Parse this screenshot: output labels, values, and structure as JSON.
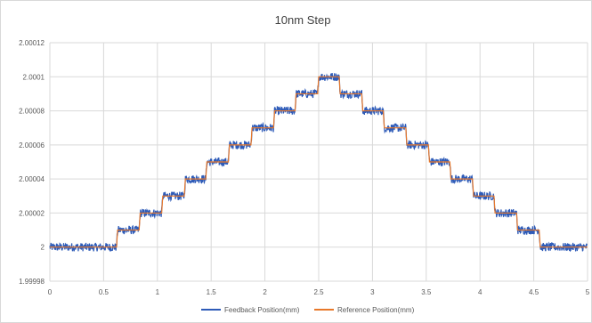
{
  "chart_data": {
    "type": "line",
    "title": "10nm Step",
    "xlabel": "",
    "ylabel": "",
    "xlim": [
      0,
      5
    ],
    "ylim": [
      1.99998,
      2.00012
    ],
    "x_ticks": [
      "0",
      "0.5",
      "1",
      "1.5",
      "2",
      "2.5",
      "3",
      "3.5",
      "4",
      "4.5",
      "5"
    ],
    "y_ticks": [
      "1.99998",
      "2",
      "2.00002",
      "2.00004",
      "2.00006",
      "2.00008",
      "2.0001",
      "2.00012"
    ],
    "grid": true,
    "legend_position": "bottom",
    "series": [
      {
        "name": "Feedback Position(mm)",
        "color": "#2e5bb8",
        "noise_amplitude": 2.5e-06,
        "x": [
          0,
          0.62,
          0.63,
          0.83,
          0.84,
          1.04,
          1.05,
          1.25,
          1.26,
          1.45,
          1.46,
          1.66,
          1.67,
          1.87,
          1.88,
          2.08,
          2.09,
          2.28,
          2.29,
          2.49,
          2.5,
          2.69,
          2.7,
          2.9,
          2.91,
          3.1,
          3.11,
          3.31,
          3.32,
          3.52,
          3.53,
          3.72,
          3.73,
          3.93,
          3.94,
          4.13,
          4.14,
          4.34,
          4.35,
          4.55,
          4.56,
          5.0
        ],
        "y": [
          2.0,
          2.0,
          2.00001,
          2.00001,
          2.00002,
          2.00002,
          2.00003,
          2.00003,
          2.00004,
          2.00004,
          2.00005,
          2.00005,
          2.00006,
          2.00006,
          2.00007,
          2.00007,
          2.00008,
          2.00008,
          2.00009,
          2.00009,
          2.0001,
          2.0001,
          2.00009,
          2.00009,
          2.00008,
          2.00008,
          2.00007,
          2.00007,
          2.00006,
          2.00006,
          2.00005,
          2.00005,
          2.00004,
          2.00004,
          2.00003,
          2.00003,
          2.00002,
          2.00002,
          2.00001,
          2.00001,
          2.0,
          2.0
        ]
      },
      {
        "name": "Reference Position(mm)",
        "color": "#e8782a",
        "x": [
          0,
          0.62,
          0.63,
          0.83,
          0.84,
          1.04,
          1.05,
          1.25,
          1.26,
          1.45,
          1.46,
          1.66,
          1.67,
          1.87,
          1.88,
          2.08,
          2.09,
          2.28,
          2.29,
          2.49,
          2.5,
          2.69,
          2.7,
          2.9,
          2.91,
          3.1,
          3.11,
          3.31,
          3.32,
          3.52,
          3.53,
          3.72,
          3.73,
          3.93,
          3.94,
          4.13,
          4.14,
          4.34,
          4.35,
          4.55,
          4.56,
          5.0
        ],
        "y": [
          2.0,
          2.0,
          2.00001,
          2.00001,
          2.00002,
          2.00002,
          2.00003,
          2.00003,
          2.00004,
          2.00004,
          2.00005,
          2.00005,
          2.00006,
          2.00006,
          2.00007,
          2.00007,
          2.00008,
          2.00008,
          2.00009,
          2.00009,
          2.0001,
          2.0001,
          2.00009,
          2.00009,
          2.00008,
          2.00008,
          2.00007,
          2.00007,
          2.00006,
          2.00006,
          2.00005,
          2.00005,
          2.00004,
          2.00004,
          2.00003,
          2.00003,
          2.00002,
          2.00002,
          2.00001,
          2.00001,
          2.0,
          2.0
        ]
      }
    ]
  }
}
